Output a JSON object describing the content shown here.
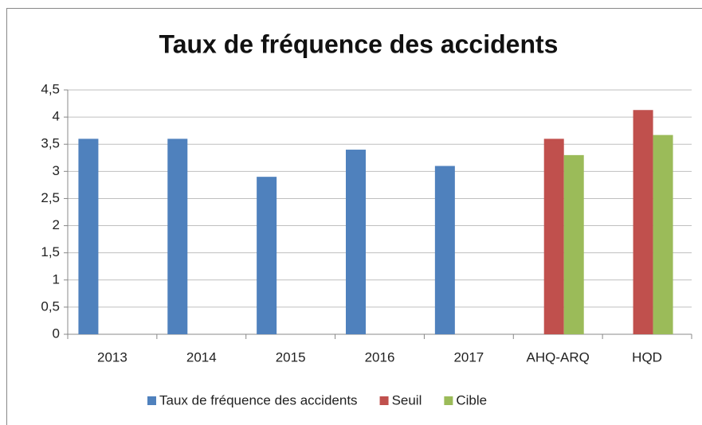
{
  "chart_data": {
    "type": "bar",
    "title": "Taux de fréquence des accidents",
    "categories": [
      "2013",
      "2014",
      "2015",
      "2016",
      "2017",
      "AHQ-ARQ",
      "HQD"
    ],
    "series": [
      {
        "name": "Taux de fréquence des accidents",
        "color": "#4f81bd",
        "values": [
          3.6,
          3.6,
          2.9,
          3.4,
          3.1,
          null,
          null
        ]
      },
      {
        "name": "Seuil",
        "color": "#c0504d",
        "values": [
          null,
          null,
          null,
          null,
          null,
          3.6,
          4.13
        ]
      },
      {
        "name": "Cible",
        "color": "#9bbb59",
        "values": [
          null,
          null,
          null,
          null,
          null,
          3.3,
          3.67
        ]
      }
    ],
    "ylim": [
      0,
      4.5
    ],
    "yticks": [
      0,
      {
        "value": 0.5,
        "label": "0,5"
      },
      1,
      {
        "value": 1.5,
        "label": "1,5"
      },
      2,
      {
        "value": 2.5,
        "label": "2,5"
      },
      3,
      {
        "value": 3.5,
        "label": "3,5"
      },
      4,
      {
        "value": 4.5,
        "label": "4,5"
      }
    ],
    "grid": true,
    "legend": "bottom"
  }
}
